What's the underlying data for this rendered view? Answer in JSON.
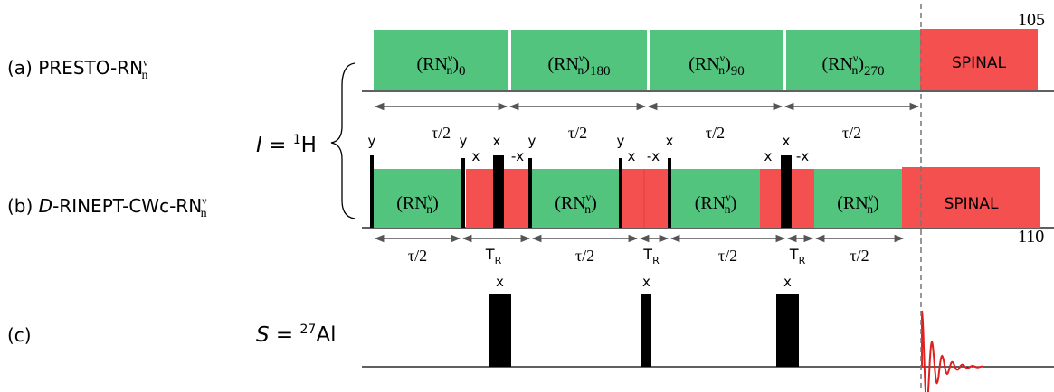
{
  "margin_numbers": [
    "105",
    "110"
  ],
  "channels": {
    "I": {
      "symbol": "I",
      "eq": " = ",
      "sup": "1",
      "nucleus": "H"
    },
    "S": {
      "symbol": "S",
      "eq": " = ",
      "sup": "27",
      "nucleus": "Al"
    }
  },
  "sequence_a": {
    "label": {
      "tag": "(a) ",
      "name": "PRESTO-RN",
      "sup": "ν",
      "sub": "n"
    },
    "blocks": [
      {
        "open": "(RN",
        "sup": "ν",
        "sub": "n",
        "close": ")",
        "phase": "0"
      },
      {
        "open": "(RN",
        "sup": "ν",
        "sub": "n",
        "close": ")",
        "phase": "180"
      },
      {
        "open": "(RN",
        "sup": "ν",
        "sub": "n",
        "close": ")",
        "phase": "90"
      },
      {
        "open": "(RN",
        "sup": "ν",
        "sub": "n",
        "close": ")",
        "phase": "270"
      },
      {
        "text": "SPINAL"
      }
    ],
    "delays": [
      "τ/2",
      "τ/2",
      "τ/2",
      "τ/2"
    ]
  },
  "sequence_b": {
    "label": {
      "tag": "(b) ",
      "italic": "D",
      "name": "-RINEPT-CWc-RN",
      "sup": "ν",
      "sub": "n"
    },
    "blocks": [
      {
        "open": "(RN",
        "sup": "ν",
        "sub": "n",
        "close": ")"
      },
      {
        "open": "(RN",
        "sup": "ν",
        "sub": "n",
        "close": ")"
      },
      {
        "open": "(RN",
        "sup": "ν",
        "sub": "n",
        "close": ")"
      },
      {
        "open": "(RN",
        "sup": "ν",
        "sub": "n",
        "close": ")"
      },
      {
        "text": "SPINAL"
      }
    ],
    "phases": [
      "y",
      "y",
      "x",
      "x",
      "-x",
      "y",
      "y",
      "x",
      "-x",
      "x",
      "x",
      "x",
      "-x"
    ],
    "delays": [
      {
        "text": "τ/2"
      },
      {
        "main": "T",
        "sub": "R"
      },
      {
        "text": "τ/2"
      },
      {
        "main": "T",
        "sub": "R"
      },
      {
        "text": "τ/2"
      },
      {
        "main": "T",
        "sub": "R"
      },
      {
        "text": "τ/2"
      }
    ]
  },
  "sequence_c": {
    "label": {
      "tag": "(c)"
    },
    "phases": [
      "x",
      "x",
      "x"
    ]
  }
}
